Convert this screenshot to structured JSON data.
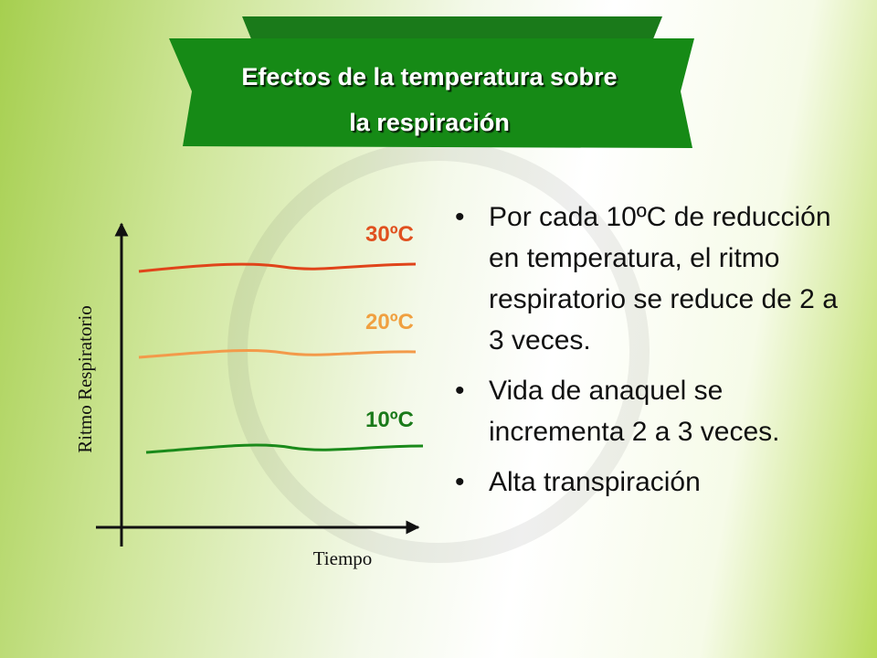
{
  "header": {
    "title_lines": [
      "Efectos de la temperatura sobre",
      "la respiración"
    ]
  },
  "diagram": {
    "y_axis_label": "Ritmo Respiratorio",
    "x_axis_label": "Tiempo",
    "curves": [
      {
        "label": "30ºC"
      },
      {
        "label": "20ºC"
      },
      {
        "label": "10ºC"
      }
    ]
  },
  "bullets": [
    "Por cada 10ºC de reducción en temperatura, el ritmo respiratorio se reduce de 2 a 3 veces.",
    "Vida de anaquel se incrementa 2 a 3 veces.",
    "Alta transpiración"
  ]
}
